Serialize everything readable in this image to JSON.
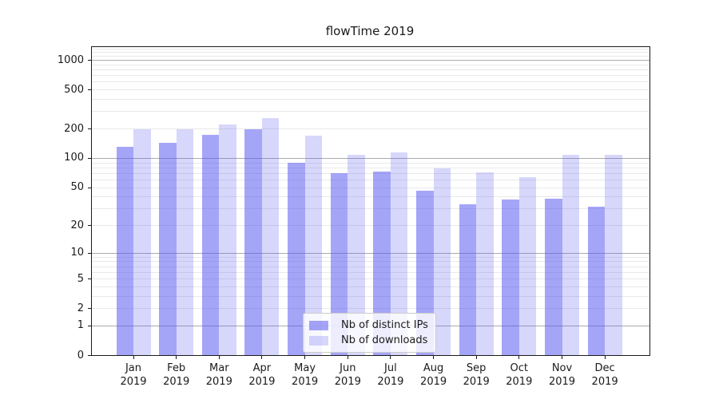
{
  "chart_data": {
    "type": "bar",
    "title": "flowTime 2019",
    "categories": [
      "Jan",
      "Feb",
      "Mar",
      "Apr",
      "May",
      "Jun",
      "Jul",
      "Aug",
      "Sep",
      "Oct",
      "Nov",
      "Dec"
    ],
    "year_label": "2019",
    "series": [
      {
        "name": "Nb of distinct IPs",
        "color": "rgba(82,82,242,0.52)",
        "values": [
          129,
          142,
          171,
          195,
          90,
          70,
          72,
          46,
          33,
          37,
          38,
          31
        ]
      },
      {
        "name": "Nb of downloads",
        "color": "rgba(82,82,242,0.23)",
        "values": [
          197,
          197,
          220,
          255,
          168,
          107,
          115,
          78,
          71,
          63,
          108,
          108
        ]
      }
    ],
    "yscale": "log1p",
    "ylim": [
      0,
      1350
    ],
    "y_ticks": [
      {
        "label": "1000",
        "value": 1000
      },
      {
        "label": "500",
        "value": 500
      },
      {
        "label": "200",
        "value": 200
      },
      {
        "label": "100",
        "value": 100
      },
      {
        "label": "50",
        "value": 50
      },
      {
        "label": "20",
        "value": 20
      },
      {
        "label": "10",
        "value": 10
      },
      {
        "label": "5",
        "value": 5
      },
      {
        "label": "2",
        "value": 2
      },
      {
        "label": "1",
        "value": 1
      },
      {
        "label": "0",
        "value": 0
      }
    ],
    "gridlines": {
      "major": [
        1,
        10,
        100,
        1000
      ],
      "minor": [
        2,
        3,
        4,
        5,
        6,
        7,
        8,
        9,
        20,
        30,
        40,
        50,
        60,
        70,
        80,
        90,
        200,
        300,
        400,
        500,
        600,
        700,
        800,
        900,
        1100,
        1200,
        1300
      ]
    },
    "grid": true,
    "legend_position": "lower center"
  },
  "colors": {
    "bar_base": "#5252f2",
    "major_grid": "#ababab",
    "minor_grid": "#e9e9e9",
    "frame": "#1a1a1a",
    "legend_border": "#cccccc"
  }
}
